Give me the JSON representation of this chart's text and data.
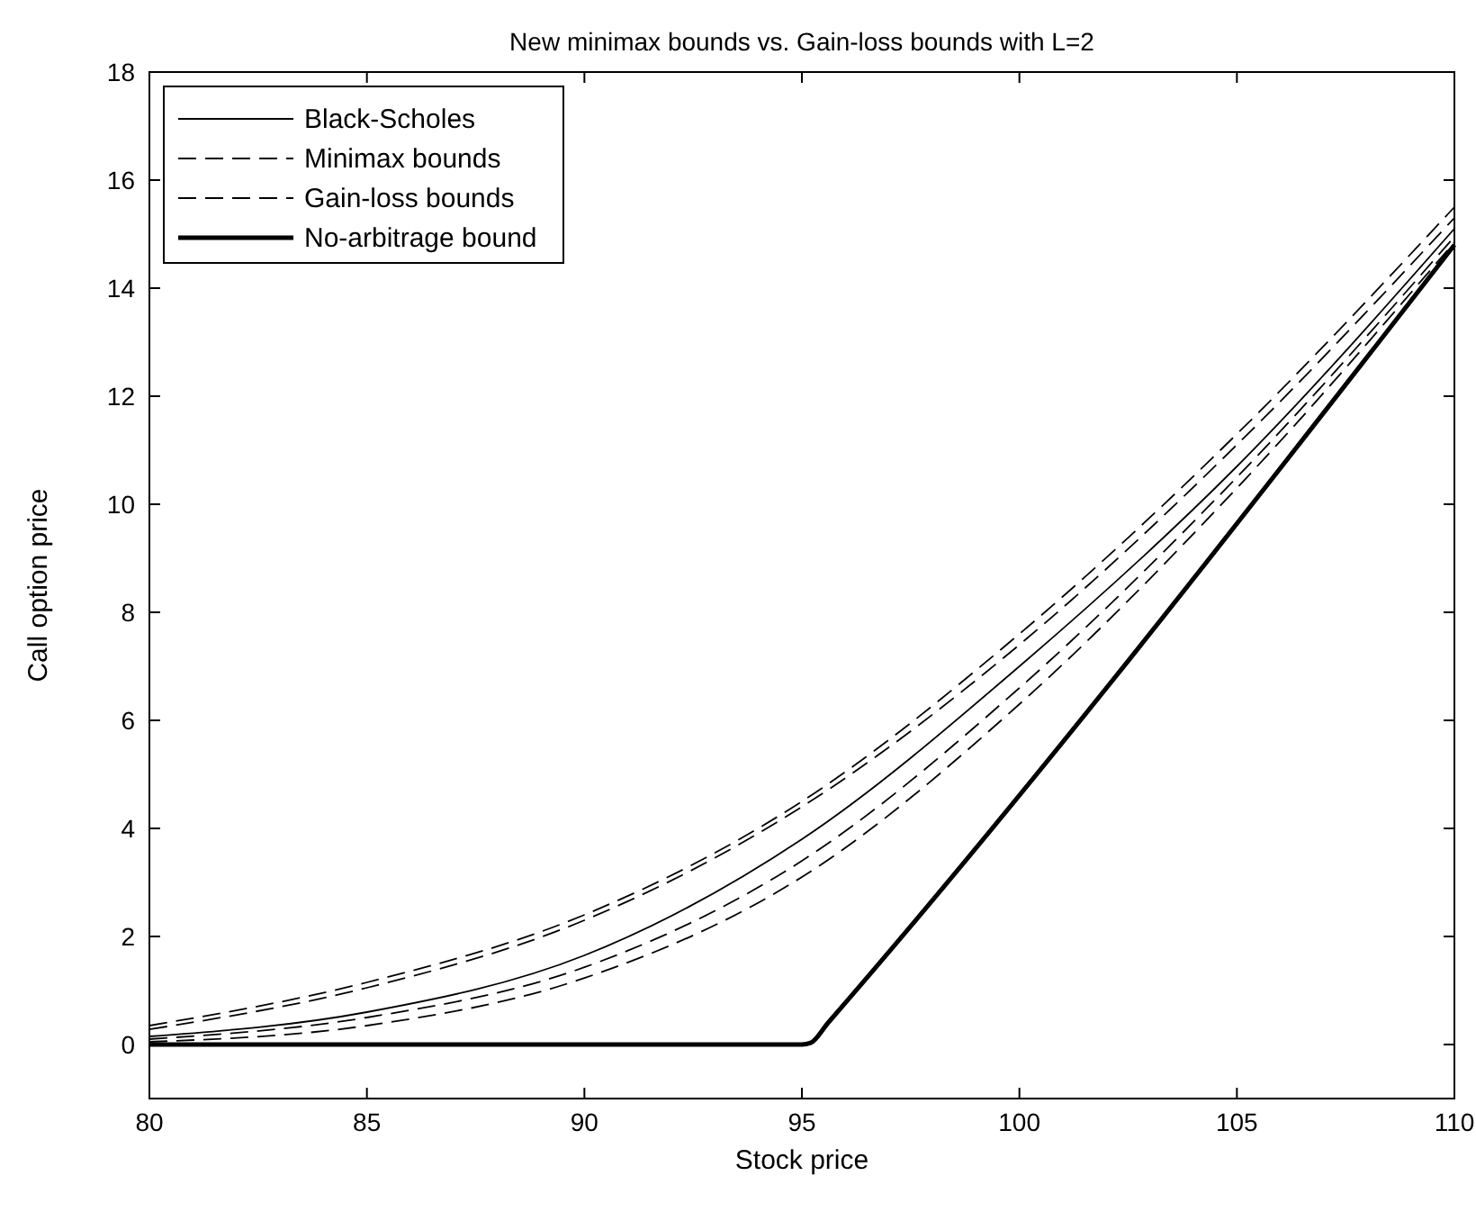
{
  "chart_data": {
    "type": "line",
    "title": "New minimax bounds vs. Gain-loss bounds with L=2",
    "xlabel": "Stock price",
    "ylabel": "Call option price",
    "x": [
      80,
      85,
      90,
      95,
      100,
      105,
      110
    ],
    "xlim": [
      80,
      110
    ],
    "xticks": [
      80,
      85,
      90,
      95,
      100,
      105,
      110
    ],
    "ylim": [
      -1,
      18
    ],
    "yticks": [
      0,
      2,
      4,
      6,
      8,
      10,
      12,
      14,
      16,
      18
    ],
    "grid": false,
    "legend": "top left",
    "marker": "none",
    "series": [
      {
        "name": "Black-Scholes",
        "color": "#000000",
        "line_style": "solid",
        "values": [
          0.15,
          0.6,
          1.65,
          3.8,
          7.0,
          10.7,
          15.1
        ]
      },
      {
        "name": "Minimax bounds",
        "color": "#000000",
        "line_style": "dashed",
        "values": [
          0.28,
          1.05,
          2.3,
          4.4,
          7.4,
          11.1,
          15.3
        ]
      },
      {
        "color": "#000000",
        "line_style": "dashed",
        "values": [
          0.1,
          0.5,
          1.43,
          3.4,
          6.6,
          10.5,
          14.95
        ]
      },
      {
        "name": "Gain-loss bounds",
        "color": "#000000",
        "line_style": "dashed",
        "values": [
          0.35,
          1.15,
          2.4,
          4.5,
          7.6,
          11.3,
          15.5
        ]
      },
      {
        "color": "#000000",
        "line_style": "dashed",
        "values": [
          0.05,
          0.35,
          1.23,
          3.1,
          6.3,
          10.3,
          14.85
        ]
      },
      {
        "name": "No-arbitrage bound",
        "color": "#000000",
        "line_style": "solid",
        "x": [
          80,
          95,
          95.2,
          95.6,
          110
        ],
        "values": [
          0,
          0,
          0.03,
          0.4,
          14.8
        ]
      }
    ]
  }
}
